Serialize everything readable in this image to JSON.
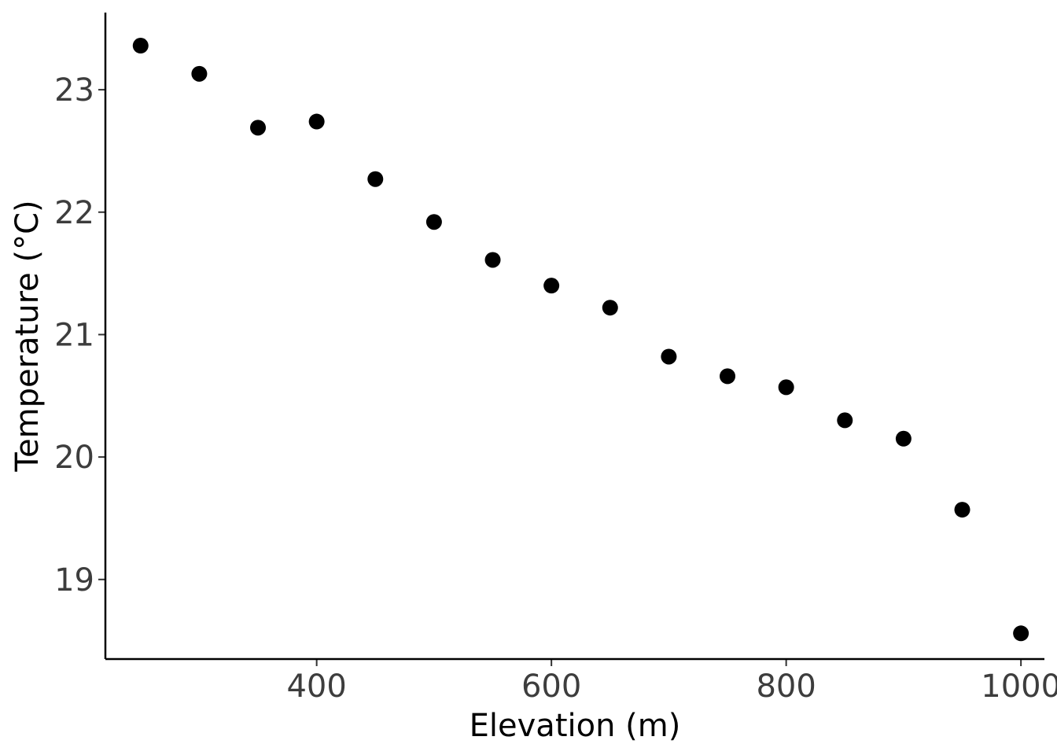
{
  "chart_data": {
    "type": "scatter",
    "title": "",
    "xlabel": "Elevation (m)",
    "ylabel": "Temperature (°C)",
    "xlim": [
      220,
      1020
    ],
    "ylim": [
      18.35,
      23.63
    ],
    "xticks": [
      400,
      600,
      800,
      1000
    ],
    "yticks": [
      19,
      20,
      21,
      22,
      23
    ],
    "grid": false,
    "legend": "none",
    "point_color": "#000000",
    "points": [
      {
        "x": 250,
        "y": 23.36
      },
      {
        "x": 300,
        "y": 23.13
      },
      {
        "x": 350,
        "y": 22.69
      },
      {
        "x": 400,
        "y": 22.74
      },
      {
        "x": 450,
        "y": 22.27
      },
      {
        "x": 500,
        "y": 21.92
      },
      {
        "x": 550,
        "y": 21.61
      },
      {
        "x": 600,
        "y": 21.4
      },
      {
        "x": 650,
        "y": 21.22
      },
      {
        "x": 700,
        "y": 20.82
      },
      {
        "x": 750,
        "y": 20.66
      },
      {
        "x": 800,
        "y": 20.57
      },
      {
        "x": 850,
        "y": 20.3
      },
      {
        "x": 900,
        "y": 20.15
      },
      {
        "x": 950,
        "y": 19.57
      },
      {
        "x": 1000,
        "y": 18.56
      }
    ]
  }
}
